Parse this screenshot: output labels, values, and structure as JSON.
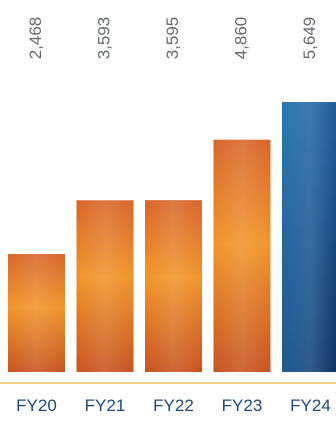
{
  "chart_data": {
    "type": "bar",
    "categories": [
      "FY20",
      "FY21",
      "FY22",
      "FY23",
      "FY24"
    ],
    "values": [
      2468,
      3593,
      3595,
      4860,
      5649
    ],
    "value_labels": [
      "2,468",
      "3,593",
      "3,595",
      "4,860",
      "5,649"
    ],
    "title": "",
    "xlabel": "",
    "ylabel": "",
    "ylim": [
      0,
      6000
    ],
    "grid": false,
    "legend": "none",
    "colors": {
      "bar_orange_light": "#f0952a",
      "bar_orange_dark": "#c8531f",
      "bar_blue_light": "#2a78b0",
      "bar_blue_dark": "#0d2f5e",
      "baseline": "#f2c46a",
      "value_text": "#666a70",
      "tick_text": "#1e4a7a"
    }
  }
}
